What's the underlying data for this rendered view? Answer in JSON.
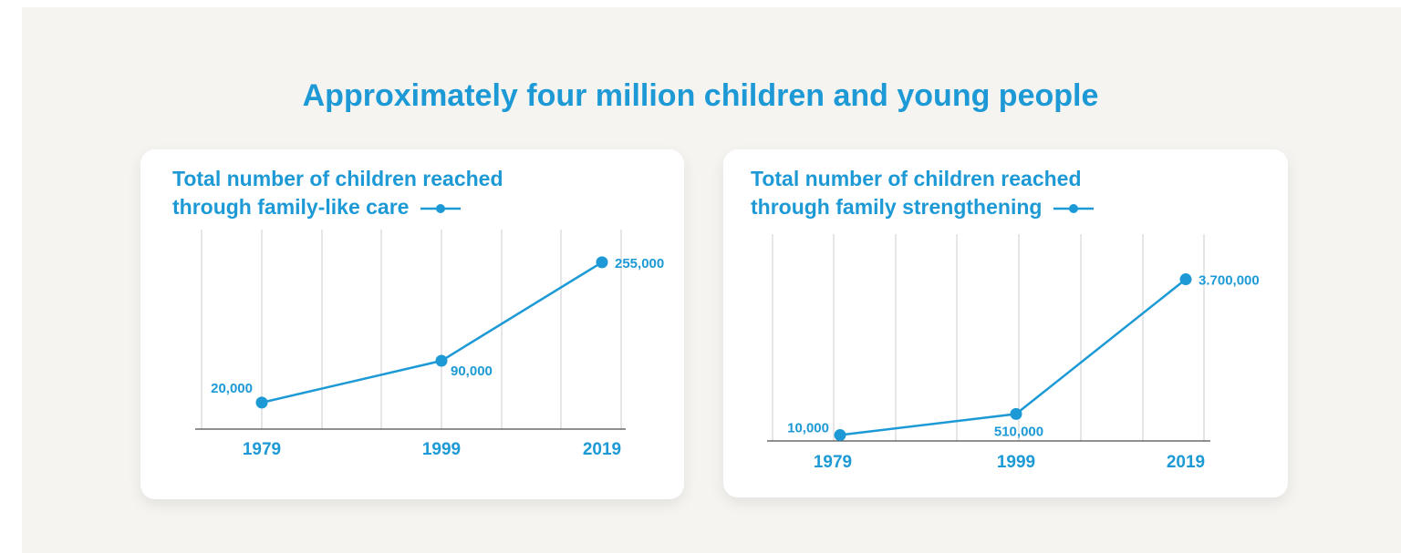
{
  "title": "Approximately four million children and young people",
  "accent_color": "#1d9ad6",
  "chart_data": [
    {
      "type": "line",
      "title": "Total number of children reached through family-like care",
      "title_lines": [
        "Total number of children reached",
        "through family-like care"
      ],
      "x": [
        1979,
        1999,
        2019
      ],
      "tick_labels": [
        "1979",
        "1999",
        "2019"
      ],
      "series": [
        {
          "values": [
            20000,
            90000,
            255000
          ],
          "color": "#1d9ad6"
        }
      ],
      "data_labels": [
        "20,000",
        "90,000",
        "255,000"
      ],
      "grid": true
    },
    {
      "type": "line",
      "title": "Total number of children reached through family strengthening",
      "title_lines": [
        "Total number of children reached",
        "through family strengthening"
      ],
      "x": [
        1979,
        1999,
        2019
      ],
      "tick_labels": [
        "1979",
        "1999",
        "2019"
      ],
      "series": [
        {
          "values": [
            10000,
            510000,
            3700000
          ],
          "color": "#1d9ad6"
        }
      ],
      "data_labels": [
        "10,000",
        "510,000",
        "3.700,000"
      ],
      "grid": true
    }
  ]
}
